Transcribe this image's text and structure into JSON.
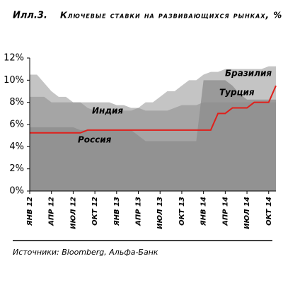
{
  "chart_data": {
    "type": "area",
    "label": "Илл.3.",
    "title": "Ключевые ставки на развивающихся рынках, %",
    "source": "Источники: Bloomberg, Альфа-Банк",
    "categories": [
      "ЯНВ 12",
      null,
      null,
      "АПР 12",
      null,
      null,
      "ИЮЛ 12",
      null,
      null,
      "ОКТ 12",
      null,
      null,
      "ЯНВ 13",
      null,
      null,
      "АПР 13",
      null,
      null,
      "ИЮЛ 13",
      null,
      null,
      "ОКТ 13",
      null,
      null,
      "ЯНВ 14",
      null,
      null,
      "АПР 14",
      null,
      null,
      "ИЮЛ 14",
      null,
      null,
      "ОКТ 14",
      null
    ],
    "series": [
      {
        "name": "Бразилия",
        "color": "#c4c4c4",
        "values": [
          10.5,
          10.5,
          9.75,
          9,
          8.5,
          8.5,
          8,
          8,
          7.5,
          7.25,
          7.25,
          7.25,
          7.25,
          7.25,
          7.25,
          7.5,
          8,
          8,
          8.5,
          9,
          9,
          9.5,
          10,
          10,
          10.5,
          10.75,
          10.75,
          11,
          11,
          11,
          11,
          11,
          11,
          11.25,
          11.25
        ]
      },
      {
        "name": "Индия",
        "color": "#8c8c8c",
        "values": [
          8.5,
          8.5,
          8.5,
          8,
          8,
          8,
          8,
          8,
          8,
          8,
          8,
          8,
          7.75,
          7.75,
          7.5,
          7.5,
          7.25,
          7.25,
          7.25,
          7.25,
          7.5,
          7.75,
          7.75,
          7.75,
          8,
          8,
          8,
          8,
          8,
          8,
          8,
          8,
          8,
          8,
          8
        ]
      },
      {
        "name": "Турция",
        "color": "#8c8c8c",
        "values": [
          5.75,
          5.75,
          5.75,
          5.75,
          5.75,
          5.75,
          5.75,
          5.5,
          5.5,
          5.5,
          5.5,
          5.5,
          5.5,
          5.5,
          5.5,
          5,
          4.5,
          4.5,
          4.5,
          4.5,
          4.5,
          4.5,
          4.5,
          4.5,
          10,
          10,
          10,
          10,
          9.5,
          8.75,
          8.25,
          8.25,
          8.25,
          8.25,
          8.25
        ]
      },
      {
        "name": "Россия",
        "color": "#e0201b",
        "values": [
          5.25,
          5.25,
          5.25,
          5.25,
          5.25,
          5.25,
          5.25,
          5.25,
          5.5,
          5.5,
          5.5,
          5.5,
          5.5,
          5.5,
          5.5,
          5.5,
          5.5,
          5.5,
          5.5,
          5.5,
          5.5,
          5.5,
          5.5,
          5.5,
          5.5,
          5.5,
          7,
          7,
          7.5,
          7.5,
          7.5,
          8,
          8,
          8,
          9.5
        ]
      }
    ],
    "ylim": [
      0,
      12
    ],
    "yticks": [
      {
        "value": 0,
        "label": "0%"
      },
      {
        "value": 2,
        "label": "2%"
      },
      {
        "value": 4,
        "label": "4%"
      },
      {
        "value": 6,
        "label": "6%"
      },
      {
        "value": 8,
        "label": "8%"
      },
      {
        "value": 10,
        "label": "10%"
      },
      {
        "value": 12,
        "label": "12%"
      }
    ],
    "grid": false
  }
}
